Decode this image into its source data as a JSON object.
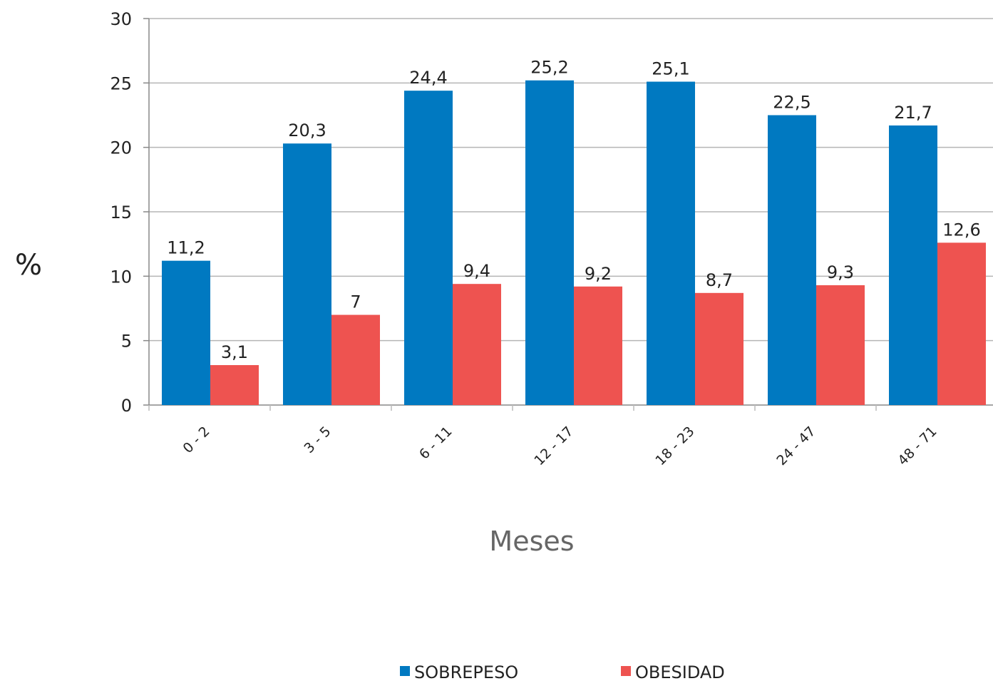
{
  "chart_data": {
    "type": "bar",
    "categories": [
      "0 - 2",
      "3 - 5",
      "6 - 11",
      "12 - 17",
      "18 - 23",
      "24 - 47",
      "48 - 71"
    ],
    "series": [
      {
        "name": "SOBREPESO",
        "color": "#0079c1",
        "values": [
          11.2,
          20.3,
          24.4,
          25.2,
          25.1,
          22.5,
          21.7
        ],
        "labels": [
          "11,2",
          "20,3",
          "24,4",
          "25,2",
          "25,1",
          "22,5",
          "21,7"
        ]
      },
      {
        "name": "OBESIDAD",
        "color": "#ee5350",
        "values": [
          3.1,
          7,
          9.4,
          9.2,
          8.7,
          9.3,
          12.6
        ],
        "labels": [
          "3,1",
          "7",
          "9,4",
          "9,2",
          "8,7",
          "9,3",
          "12,6"
        ]
      }
    ],
    "ylabel": "%",
    "xlabel": "Meses",
    "ylim": [
      0,
      30
    ],
    "yticks": [
      0,
      5,
      10,
      15,
      20,
      25,
      30
    ],
    "grid": true,
    "legend_position": "bottom"
  }
}
